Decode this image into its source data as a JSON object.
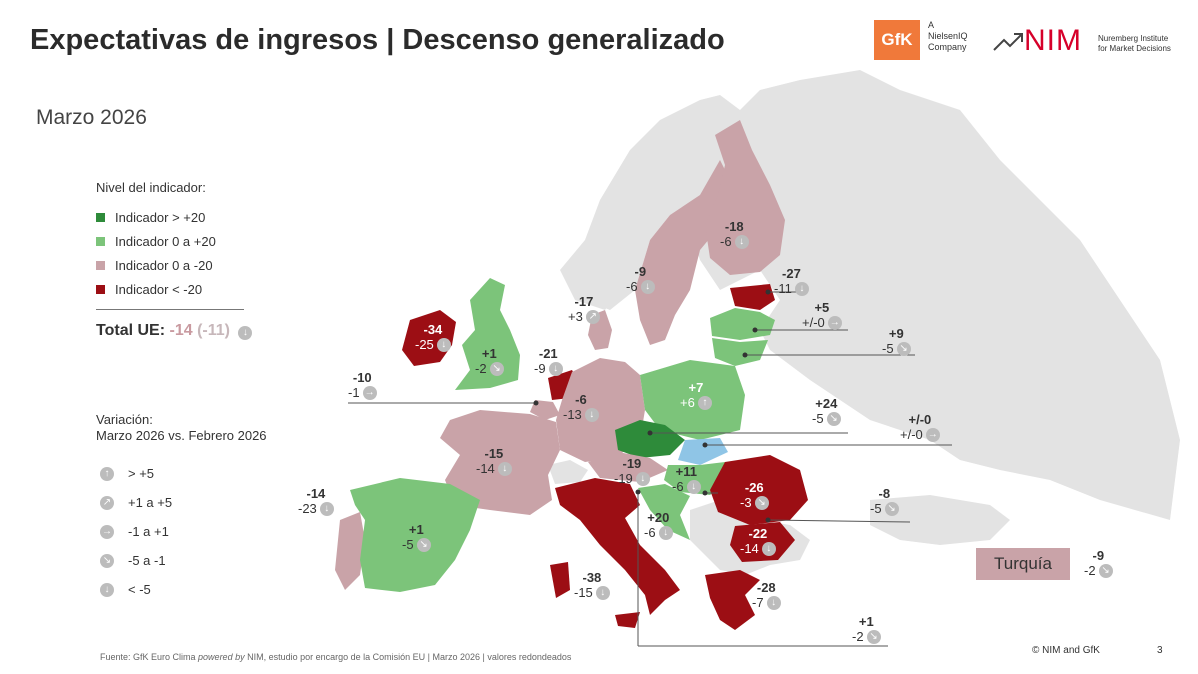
{
  "title": "Expectativas de ingresos | Descenso generalizado",
  "subtitle": "Marzo 2026",
  "logos": {
    "gfk": "GfK",
    "gfk_sub": [
      "A",
      "NielsenIQ",
      "Company"
    ],
    "nim": "NIM",
    "nim_sub": [
      "Nuremberg Institute",
      "for Market Decisions"
    ]
  },
  "colors": {
    "dark_green": "#2e8b3a",
    "light_green": "#7cc47a",
    "light_red": "#c9a3a8",
    "dark_red": "#9c0e14",
    "neutral": "#e3e3e3",
    "no_change_blue": "#8fc5e6"
  },
  "legend": {
    "title": "Nivel del indicador:",
    "items": [
      {
        "label": "Indicador > +20",
        "color": "#2e8b3a"
      },
      {
        "label": "Indicador 0 a +20",
        "color": "#7cc47a"
      },
      {
        "label": "Indicador 0 a -20",
        "color": "#c9a3a8"
      },
      {
        "label": "Indicador < -20",
        "color": "#9c0e14"
      }
    ]
  },
  "total": {
    "label": "Total UE:",
    "value": "-14",
    "change": "(-11)",
    "icon": "arrow-down-icon"
  },
  "variation": {
    "title_line1": "Variación:",
    "title_line2": "Marzo 2026 vs. Febrero 2026",
    "items": [
      {
        "icon": "arrow-up-icon",
        "glyph": "↑",
        "label": "> +5"
      },
      {
        "icon": "arrow-up-right-icon",
        "glyph": "↗",
        "label": "+1 a +5"
      },
      {
        "icon": "arrow-right-icon",
        "glyph": "→",
        "label": "-1 a +1"
      },
      {
        "icon": "arrow-down-right-icon",
        "glyph": "↘",
        "label": "-5 a -1"
      },
      {
        "icon": "arrow-down-icon",
        "glyph": "↓",
        "label": "< -5"
      }
    ]
  },
  "countries": {
    "ireland": {
      "value": "-34",
      "change": "-25",
      "icon": "arrow-down-icon"
    },
    "uk": {
      "value": "+1",
      "change": "-2",
      "icon": "arrow-down-right-icon"
    },
    "portugal": {
      "value": "-14",
      "change": "-23",
      "icon": "arrow-down-icon"
    },
    "spain": {
      "value": "+1",
      "change": "-5",
      "icon": "arrow-down-right-icon"
    },
    "france": {
      "value": "-15",
      "change": "-14",
      "icon": "arrow-down-icon"
    },
    "belgium": {
      "value": "-10",
      "change": "-1",
      "icon": "arrow-right-icon"
    },
    "netherlands": {
      "value": "-21",
      "change": "-9",
      "icon": "arrow-down-icon"
    },
    "germany": {
      "value": "-6",
      "change": "-13",
      "icon": "arrow-down-icon"
    },
    "denmark": {
      "value": "-17",
      "change": "+3",
      "icon": "arrow-up-right-icon"
    },
    "sweden": {
      "value": "-9",
      "change": "-6",
      "icon": "arrow-down-icon"
    },
    "finland": {
      "value": "-18",
      "change": "-6",
      "icon": "arrow-down-icon"
    },
    "estonia": {
      "value": "-27",
      "change": "-11",
      "icon": "arrow-down-icon"
    },
    "latvia": {
      "value": "+5",
      "change": "+/-0",
      "icon": "arrow-right-icon"
    },
    "lithuania": {
      "value": "+9",
      "change": "-5",
      "icon": "arrow-down-right-icon"
    },
    "poland": {
      "value": "+7",
      "change": "+6",
      "icon": "arrow-up-icon"
    },
    "czechia": {
      "value": "+24",
      "change": "-5",
      "icon": "arrow-down-right-icon"
    },
    "slovakia": {
      "value": "+/-0",
      "change": "+/-0",
      "icon": "arrow-right-icon"
    },
    "austria": {
      "value": "-19",
      "change": "-19",
      "icon": "arrow-down-icon"
    },
    "hungary": {
      "value": "+11",
      "change": "-6",
      "icon": "arrow-down-icon"
    },
    "romania": {
      "value": "-26",
      "change": "-3",
      "icon": "arrow-down-right-icon"
    },
    "bulgaria_line": {
      "value": "-8",
      "change": "-5",
      "icon": "arrow-down-right-icon"
    },
    "croatia": {
      "value": "+20",
      "change": "-6",
      "icon": "arrow-down-icon"
    },
    "bulgaria": {
      "value": "-22",
      "change": "-14",
      "icon": "arrow-down-icon"
    },
    "italy": {
      "value": "-38",
      "change": "-15",
      "icon": "arrow-down-icon"
    },
    "greece": {
      "value": "-28",
      "change": "-7",
      "icon": "arrow-down-icon"
    },
    "cyprus_line": {
      "value": "+1",
      "change": "-2",
      "icon": "arrow-down-right-icon"
    }
  },
  "turkey": {
    "label": "Turquía",
    "value": "-9",
    "change": "-2",
    "icon": "arrow-down-right-icon"
  },
  "footer": {
    "source_prefix": "Fuente: GfK Euro Clima ",
    "source_italic": "powered by",
    "source_suffix": " NIM, estudio por encargo de la Comisión EU | Marzo 2026 | valores redondeados",
    "copyright": "© NIM and GfK",
    "page": "3"
  }
}
